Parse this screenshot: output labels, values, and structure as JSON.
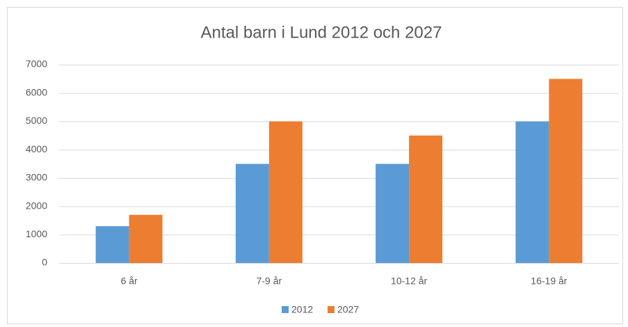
{
  "chart_data": {
    "type": "bar",
    "title": "Antal barn i Lund 2012 och 2027",
    "categories": [
      "6 år",
      "7-9 år",
      "10-12 år",
      "16-19 år"
    ],
    "series": [
      {
        "name": "2012",
        "color": "#5b9bd5",
        "values": [
          1300,
          3500,
          3500,
          5000
        ]
      },
      {
        "name": "2027",
        "color": "#ed7d31",
        "values": [
          1700,
          5000,
          4500,
          6500
        ]
      }
    ],
    "ylim": [
      0,
      7000
    ],
    "yticks": [
      0,
      1000,
      2000,
      3000,
      4000,
      5000,
      6000,
      7000
    ],
    "grid": true,
    "legend": "bottom"
  }
}
